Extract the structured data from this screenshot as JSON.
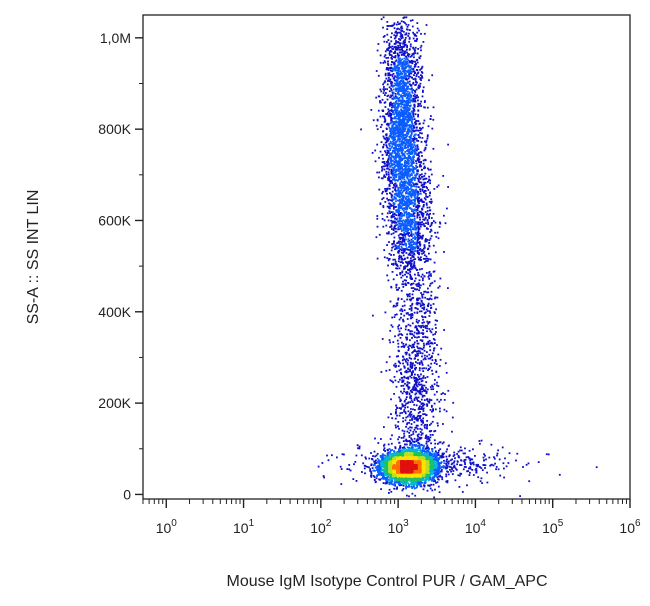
{
  "chart_data": {
    "type": "scatter",
    "title": "",
    "xlabel": "Mouse IgM Isotype Control PUR / GAM_APC",
    "ylabel": "SS-A :: SS INT LIN",
    "x_scale": "log",
    "xlim": [
      0.5,
      1000000
    ],
    "ylim": [
      -10000,
      1050000
    ],
    "x_ticks": [
      {
        "base": "10",
        "exp": "0",
        "value": 1
      },
      {
        "base": "10",
        "exp": "1",
        "value": 10
      },
      {
        "base": "10",
        "exp": "2",
        "value": 100
      },
      {
        "base": "10",
        "exp": "3",
        "value": 1000
      },
      {
        "base": "10",
        "exp": "4",
        "value": 10000
      },
      {
        "base": "10",
        "exp": "5",
        "value": 100000
      },
      {
        "base": "10",
        "exp": "6",
        "value": 1000000
      }
    ],
    "y_ticks": [
      {
        "label": "0",
        "value": 0
      },
      {
        "label": "200K",
        "value": 200000
      },
      {
        "label": "400K",
        "value": 400000
      },
      {
        "label": "600K",
        "value": 600000
      },
      {
        "label": "800K",
        "value": 800000
      },
      {
        "label": "1,0M",
        "value": 1000000
      }
    ],
    "grid": false,
    "legend": "none",
    "colormap": [
      "#1010c8",
      "#0a5cff",
      "#00b8d0",
      "#20c060",
      "#b8e020",
      "#ffe000",
      "#ff7000",
      "#e01010"
    ],
    "populations": [
      {
        "x_center": 1300,
        "y_center": 62000,
        "x_spread_log10": 0.17,
        "y_spread": 17000,
        "weight": 0.45
      },
      {
        "x_center": 1100,
        "y_center": 810000,
        "x_spread_log10": 0.13,
        "y_spread": 120000,
        "weight": 0.28
      },
      {
        "x_center": 1400,
        "y_center": 600000,
        "x_spread_log10": 0.15,
        "y_spread": 80000,
        "weight": 0.1
      },
      {
        "x_center": 1700,
        "y_center": 260000,
        "x_spread_log10": 0.16,
        "y_spread": 140000,
        "weight": 0.12
      },
      {
        "x_center": 3000,
        "y_center": 70000,
        "x_spread_log10": 0.55,
        "y_spread": 22000,
        "weight": 0.05
      }
    ]
  }
}
